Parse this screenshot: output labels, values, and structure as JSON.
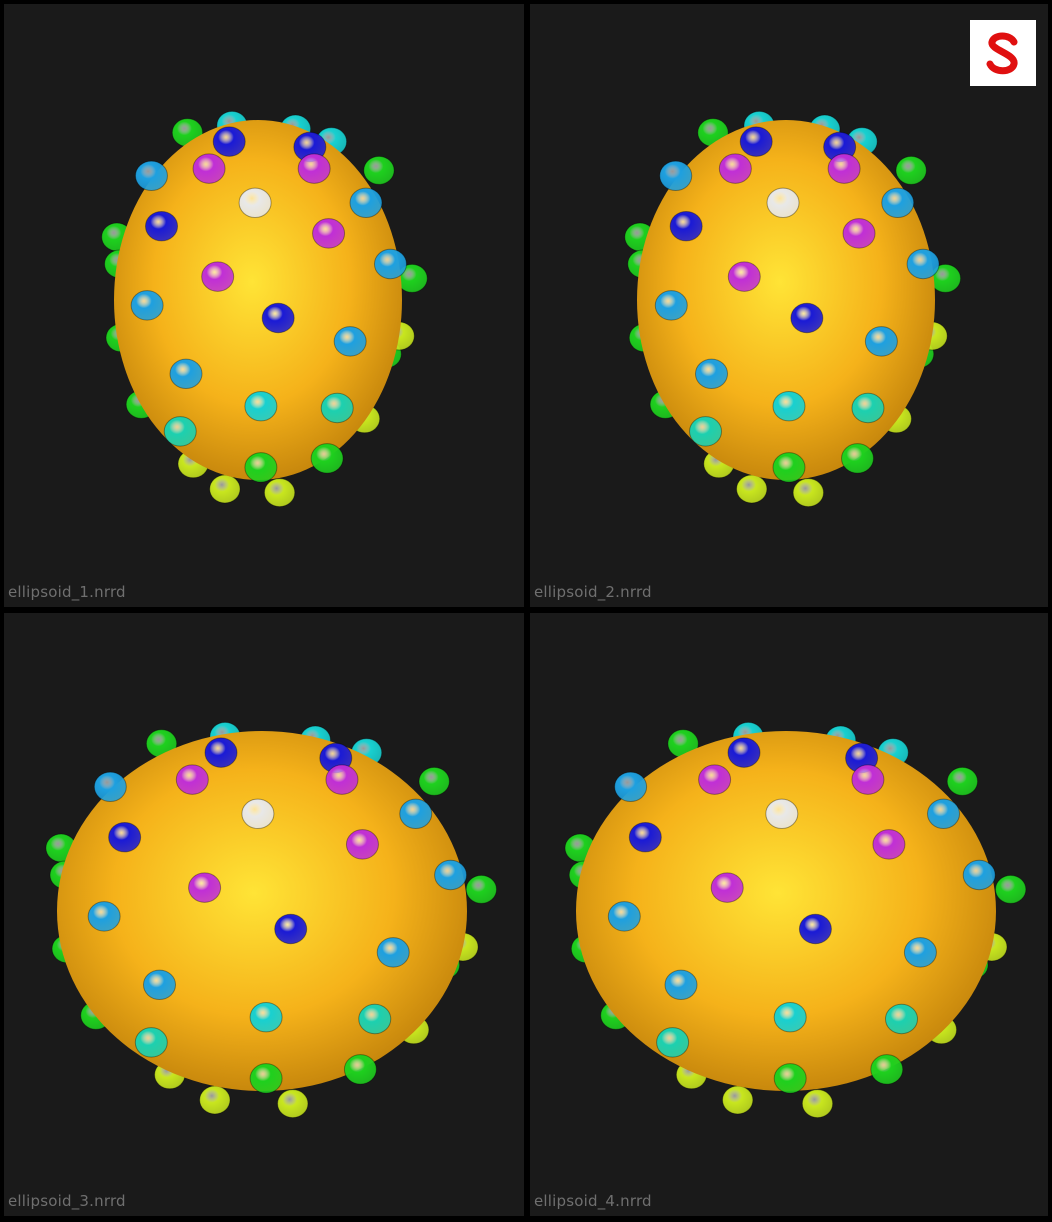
{
  "viewports": [
    {
      "label": "ellipsoid_1.nrrd"
    },
    {
      "label": "ellipsoid_2.nrrd"
    },
    {
      "label": "ellipsoid_3.nrrd"
    },
    {
      "label": "ellipsoid_4.nrrd"
    }
  ],
  "logo_icon": "shapeworks-s-logo-icon",
  "colors": {
    "background": "#1a1a1a",
    "surface": "#f5b21a",
    "particle_white": "#e8e8e8",
    "particle_magenta": "#c02fd6",
    "particle_blue": "#1a1ad6",
    "particle_lightblue": "#1ea0e0",
    "particle_cyan": "#18d0d0",
    "particle_teal": "#1cd0b0",
    "particle_green": "#1ed01e",
    "particle_yellowgreen": "#c8e61e",
    "logo_red": "#e01010"
  }
}
